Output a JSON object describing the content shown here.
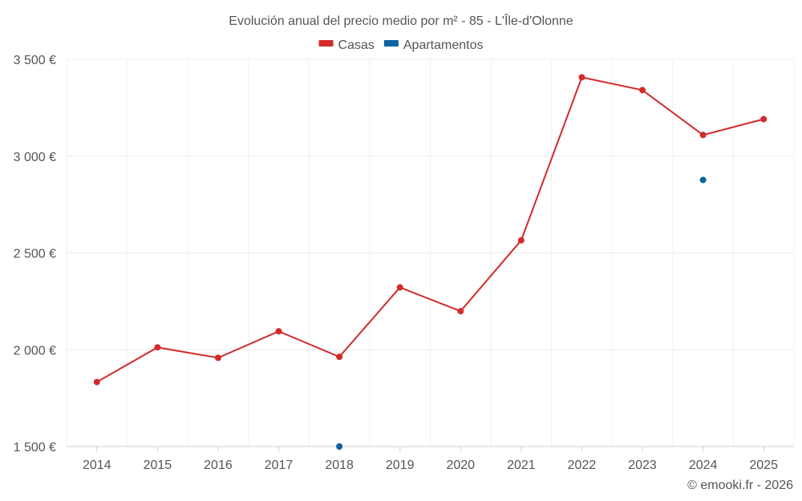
{
  "chart_data": {
    "type": "line",
    "title": "Evolución anual del precio medio por m² - 85 - L'Île-d'Olonne",
    "categories": [
      "2014",
      "2015",
      "2016",
      "2017",
      "2018",
      "2019",
      "2020",
      "2021",
      "2022",
      "2023",
      "2024",
      "2025"
    ],
    "series": [
      {
        "name": "Casas",
        "color": "#d32a2a",
        "values": [
          1833,
          2012,
          1958,
          2095,
          1963,
          2322,
          2199,
          2565,
          3407,
          3341,
          3109,
          3191
        ]
      },
      {
        "name": "Apartamentos",
        "color": "#0b64a0",
        "values": [
          null,
          null,
          null,
          null,
          1500,
          null,
          null,
          null,
          null,
          null,
          2877,
          null
        ]
      }
    ],
    "ylim": [
      1500,
      3500
    ],
    "yticks": [
      1500,
      2000,
      2500,
      3000,
      3500
    ],
    "ytick_labels": [
      "1 500 €",
      "2 000 €",
      "2 500 €",
      "3 000 €",
      "3 500 €"
    ],
    "xlabel": "",
    "ylabel": "",
    "grid": true,
    "legend_position": "top-center"
  },
  "copyright": "© emooki.fr - 2026"
}
